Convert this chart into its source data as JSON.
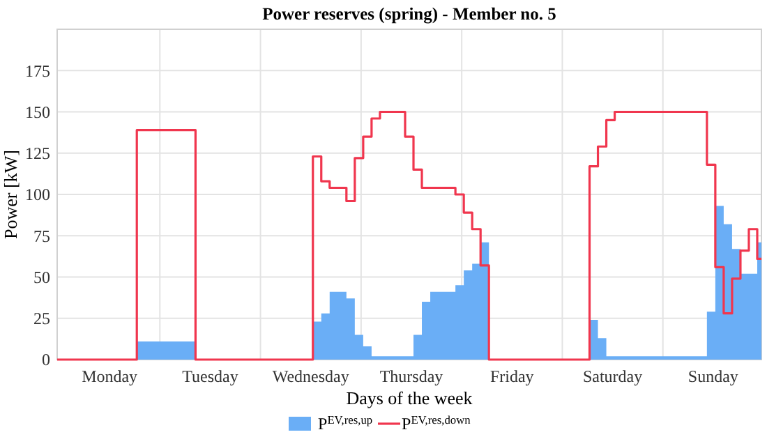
{
  "chart_data": {
    "type": "step",
    "title": "Power reserves (spring) - Member no. 5",
    "xlabel": "Days of the week",
    "ylabel": "Power [kW]",
    "categories": [
      null,
      null,
      null,
      null,
      null,
      null,
      null,
      null,
      null,
      null,
      null,
      null,
      "Monday",
      null,
      null,
      null,
      null,
      null,
      null,
      null,
      null,
      null,
      null,
      null,
      null,
      null,
      null,
      null,
      null,
      null,
      null,
      null,
      null,
      null,
      null,
      null,
      "Tuesday",
      null,
      null,
      null,
      null,
      null,
      null,
      null,
      null,
      null,
      null,
      null,
      null,
      null,
      null,
      null,
      null,
      null,
      null,
      null,
      null,
      null,
      null,
      null,
      "Wednesday",
      null,
      null,
      null,
      null,
      null,
      null,
      null,
      null,
      null,
      null,
      null,
      null,
      null,
      null,
      null,
      null,
      null,
      null,
      null,
      null,
      null,
      null,
      null,
      "Thursday",
      null,
      null,
      null,
      null,
      null,
      null,
      null,
      null,
      null,
      null,
      null,
      null,
      null,
      null,
      null,
      null,
      null,
      null,
      null,
      null,
      null,
      null,
      null,
      "Friday",
      null,
      null,
      null,
      null,
      null,
      null,
      null,
      null,
      null,
      null,
      null,
      null,
      null,
      null,
      null,
      null,
      null,
      null,
      null,
      null,
      null,
      null,
      null,
      "Saturday",
      null,
      null,
      null,
      null,
      null,
      null,
      null,
      null,
      null,
      null,
      null,
      null,
      null,
      null,
      null,
      null,
      null,
      null,
      null,
      null,
      null,
      null,
      null,
      "Sunday",
      null,
      null,
      null,
      null,
      null,
      null,
      null,
      null,
      null,
      null,
      null
    ],
    "ylim": [
      0,
      200
    ],
    "yticks": [
      0,
      25,
      50,
      75,
      100,
      125,
      150,
      175
    ],
    "grid": true,
    "legend": "bottom",
    "series": [
      {
        "name": "P$^{EV,res,up}$",
        "type": "area",
        "color": "#6aaef6",
        "values": [
          0,
          0,
          0,
          0,
          0,
          0,
          0,
          0,
          0,
          0,
          0,
          0,
          0,
          0,
          0,
          0,
          0,
          0,
          0,
          11,
          11,
          11,
          11,
          11,
          11,
          11,
          11,
          11,
          11,
          11,
          11,
          11,
          11,
          0,
          0,
          0,
          0,
          0,
          0,
          0,
          0,
          0,
          0,
          0,
          0,
          0,
          0,
          0,
          0,
          0,
          0,
          0,
          0,
          0,
          0,
          0,
          0,
          0,
          0,
          0,
          0,
          23,
          23,
          28,
          28,
          41,
          41,
          41,
          41,
          37,
          37,
          15,
          15,
          8,
          8,
          2,
          2,
          2,
          2,
          2,
          2,
          2,
          2,
          2,
          2,
          15,
          15,
          35,
          35,
          41,
          41,
          41,
          41,
          41,
          41,
          45,
          45,
          54,
          54,
          58,
          58,
          71,
          71,
          0,
          0,
          0,
          0,
          0,
          0,
          0,
          0,
          0,
          0,
          0,
          0,
          0,
          0,
          0,
          0,
          0,
          0,
          0,
          0,
          0,
          0,
          0,
          0,
          24,
          24,
          13,
          13,
          2,
          2,
          2,
          2,
          2,
          2,
          2,
          2,
          2,
          2,
          2,
          2,
          2,
          2,
          2,
          2,
          2,
          2,
          2,
          2,
          2,
          2,
          2,
          2,
          29,
          29,
          93,
          93,
          82,
          82,
          67,
          67,
          52,
          52,
          52,
          52,
          71
        ]
      },
      {
        "name": "P$^{EV,res,down}$",
        "color": "#f0364e",
        "values": [
          0,
          0,
          0,
          0,
          0,
          0,
          0,
          0,
          0,
          0,
          0,
          0,
          0,
          0,
          0,
          0,
          0,
          0,
          0,
          139,
          139,
          139,
          139,
          139,
          139,
          139,
          139,
          139,
          139,
          139,
          139,
          139,
          139,
          0,
          0,
          0,
          0,
          0,
          0,
          0,
          0,
          0,
          0,
          0,
          0,
          0,
          0,
          0,
          0,
          0,
          0,
          0,
          0,
          0,
          0,
          0,
          0,
          0,
          0,
          0,
          0,
          123,
          123,
          108,
          108,
          104,
          104,
          104,
          104,
          96,
          96,
          122,
          122,
          135,
          135,
          146,
          146,
          150,
          150,
          150,
          150,
          150,
          150,
          135,
          135,
          115,
          115,
          104,
          104,
          104,
          104,
          104,
          104,
          104,
          104,
          100,
          100,
          89,
          89,
          79,
          79,
          57,
          57,
          0,
          0,
          0,
          0,
          0,
          0,
          0,
          0,
          0,
          0,
          0,
          0,
          0,
          0,
          0,
          0,
          0,
          0,
          0,
          0,
          0,
          0,
          0,
          0,
          117,
          117,
          129,
          129,
          145,
          145,
          150,
          150,
          150,
          150,
          150,
          150,
          150,
          150,
          150,
          150,
          150,
          150,
          150,
          150,
          150,
          150,
          150,
          150,
          150,
          150,
          150,
          150,
          118,
          118,
          56,
          56,
          28,
          28,
          49,
          49,
          66,
          66,
          79,
          79,
          61
        ]
      }
    ]
  }
}
